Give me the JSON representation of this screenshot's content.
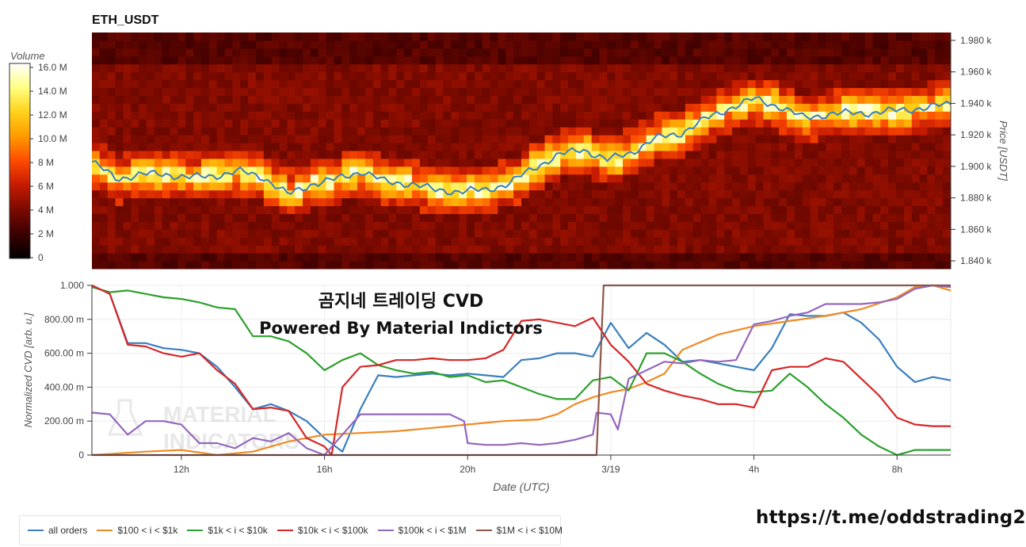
{
  "chart_data": [
    {
      "type": "heatmap",
      "title": "ETH_USDT",
      "ylabel": "Price [USDT]",
      "ylim": [
        1835,
        1985
      ],
      "yticks": [
        "1.840 k",
        "1.860 k",
        "1.880 k",
        "1.900 k",
        "1.920 k",
        "1.940 k",
        "1.960 k",
        "1.980 k"
      ],
      "ytick_values": [
        1840,
        1860,
        1880,
        1900,
        1920,
        1940,
        1960,
        1980
      ],
      "colorbar": {
        "label": "Volume",
        "ticks": [
          "0",
          "2 M",
          "4 M",
          "6 M",
          "8 M",
          "10.0 M",
          "12.0 M",
          "14.0 M",
          "16.0 M"
        ],
        "range": [
          0,
          16000000
        ],
        "colors": [
          "#000000",
          "#3a0000",
          "#7a0a00",
          "#c41a00",
          "#ff4a00",
          "#ff9a00",
          "#ffd21a",
          "#ffff80",
          "#ffffff"
        ]
      },
      "price_series": {
        "name": "price",
        "color": "#3a7fbf",
        "x_hours": [
          0,
          1,
          2,
          3,
          4,
          5,
          6,
          7,
          8,
          9,
          10,
          11,
          12,
          13,
          14,
          15,
          16,
          17,
          18,
          19,
          20,
          21,
          22,
          23
        ],
        "y": [
          1903,
          1892,
          1895,
          1895,
          1893,
          1894,
          1897,
          1893,
          1882,
          1889,
          1892,
          1897,
          1890,
          1889,
          1885,
          1884,
          1885,
          1889,
          1899,
          1907,
          1911,
          1904,
          1909,
          1918
        ]
      },
      "x_hours_extra": [
        24,
        25,
        26,
        27,
        28,
        29,
        30,
        31,
        32,
        33,
        34,
        35
      ],
      "price_extra": [
        1921,
        1930,
        1937,
        1943,
        1938,
        1931,
        1933,
        1934,
        1934,
        1936,
        1937,
        1940
      ]
    },
    {
      "type": "line",
      "title": "곰지네 트레이딩 CVD",
      "subtitle": "Powered By Material Indictors",
      "xlabel": "Date (UTC)",
      "ylabel": "Normalized CVD [arb. u.]",
      "ylim": [
        0,
        1
      ],
      "yticks": [
        "0",
        "200.00 m",
        "400.00 m",
        "600.00 m",
        "800.00 m",
        "1.000"
      ],
      "ytick_values": [
        0,
        0.2,
        0.4,
        0.6,
        0.8,
        1.0
      ],
      "x_range_hours": [
        9.5,
        33.5
      ],
      "xticks": [
        "12h",
        "16h",
        "20h",
        "3/19",
        "4h",
        "8h"
      ],
      "xtick_hours": [
        12,
        16,
        20,
        24,
        28,
        32
      ],
      "series": [
        {
          "name": "all orders",
          "color": "#3a7fbf",
          "x": [
            9.5,
            10,
            10.5,
            11,
            11.5,
            12,
            12.5,
            13,
            13.5,
            14,
            14.5,
            15,
            15.5,
            16,
            16.5,
            17,
            17.5,
            18,
            18.5,
            19,
            19.5,
            20,
            20.5,
            21,
            21.5,
            22,
            22.5,
            23,
            23.5,
            24,
            24.5,
            25,
            25.5,
            26,
            26.5,
            27,
            27.5,
            28,
            28.5,
            29,
            29.5,
            30,
            30.5,
            31,
            31.5,
            32,
            32.5,
            33,
            33.5
          ],
          "y": [
            1.0,
            0.95,
            0.66,
            0.66,
            0.63,
            0.62,
            0.6,
            0.52,
            0.4,
            0.27,
            0.3,
            0.26,
            0.2,
            0.1,
            0.02,
            0.27,
            0.47,
            0.46,
            0.47,
            0.48,
            0.47,
            0.48,
            0.47,
            0.46,
            0.56,
            0.57,
            0.6,
            0.6,
            0.58,
            0.78,
            0.63,
            0.72,
            0.65,
            0.55,
            0.56,
            0.54,
            0.52,
            0.5,
            0.63,
            0.83,
            0.82,
            0.82,
            0.84,
            0.78,
            0.68,
            0.52,
            0.43,
            0.46,
            0.44
          ]
        },
        {
          "name": "$100 < i < $1k",
          "color": "#f08a24",
          "x": [
            9.5,
            11,
            12,
            13,
            14,
            15,
            16,
            17,
            18,
            19,
            20,
            21,
            22,
            22.5,
            23,
            23.5,
            24,
            24.5,
            25,
            25.5,
            26,
            27,
            28,
            29,
            30,
            31,
            32,
            32.5,
            33,
            33.5
          ],
          "y": [
            0.0,
            0.02,
            0.03,
            0.0,
            0.02,
            0.08,
            0.12,
            0.13,
            0.14,
            0.16,
            0.18,
            0.2,
            0.21,
            0.24,
            0.3,
            0.34,
            0.37,
            0.39,
            0.43,
            0.48,
            0.62,
            0.71,
            0.76,
            0.79,
            0.82,
            0.86,
            0.93,
            0.99,
            1.0,
            0.97
          ]
        },
        {
          "name": "$1k < i < $10k",
          "color": "#2ca02c",
          "x": [
            9.5,
            10,
            10.5,
            11,
            11.5,
            12,
            12.5,
            13,
            13.5,
            14,
            14.5,
            15,
            15.5,
            16,
            16.5,
            17,
            17.5,
            18,
            18.5,
            19,
            19.5,
            20,
            20.5,
            21,
            21.5,
            22,
            22.5,
            23,
            23.5,
            24,
            24.5,
            25,
            25.5,
            26,
            26.5,
            27,
            27.5,
            28,
            28.5,
            29,
            29.5,
            30,
            30.5,
            31,
            31.5,
            32,
            32.5,
            33,
            33.5
          ],
          "y": [
            0.99,
            0.96,
            0.97,
            0.95,
            0.93,
            0.92,
            0.9,
            0.87,
            0.86,
            0.7,
            0.7,
            0.67,
            0.6,
            0.5,
            0.56,
            0.6,
            0.53,
            0.5,
            0.48,
            0.49,
            0.46,
            0.47,
            0.43,
            0.44,
            0.4,
            0.36,
            0.33,
            0.33,
            0.44,
            0.46,
            0.38,
            0.6,
            0.6,
            0.55,
            0.48,
            0.42,
            0.38,
            0.37,
            0.38,
            0.48,
            0.4,
            0.3,
            0.22,
            0.12,
            0.05,
            0.0,
            0.03,
            0.03,
            0.03
          ]
        },
        {
          "name": "$10k < i < $100k",
          "color": "#d62728",
          "x": [
            9.5,
            10,
            10.5,
            11,
            11.5,
            12,
            12.5,
            13,
            13.5,
            14,
            14.5,
            15,
            15.5,
            16,
            16.2,
            16.5,
            17,
            17.5,
            18,
            18.5,
            19,
            19.5,
            20,
            20.5,
            21,
            21.5,
            22,
            22.5,
            23,
            23.5,
            24,
            24.5,
            25,
            25.5,
            26,
            26.5,
            27,
            27.5,
            28,
            28.5,
            29,
            29.5,
            30,
            30.5,
            31,
            31.5,
            32,
            32.5,
            33,
            33.5
          ],
          "y": [
            1.0,
            0.95,
            0.65,
            0.64,
            0.6,
            0.58,
            0.6,
            0.5,
            0.42,
            0.27,
            0.28,
            0.26,
            0.1,
            0.05,
            0.0,
            0.4,
            0.52,
            0.53,
            0.56,
            0.56,
            0.57,
            0.56,
            0.56,
            0.57,
            0.62,
            0.79,
            0.8,
            0.78,
            0.76,
            0.81,
            0.65,
            0.55,
            0.42,
            0.38,
            0.35,
            0.33,
            0.3,
            0.3,
            0.28,
            0.5,
            0.52,
            0.52,
            0.57,
            0.55,
            0.45,
            0.35,
            0.22,
            0.18,
            0.17,
            0.17
          ]
        },
        {
          "name": "$100k < i < $1M",
          "color": "#9467bd",
          "x": [
            9.5,
            10,
            10.5,
            11,
            11.5,
            12,
            12.5,
            13,
            13.5,
            14,
            14.5,
            15,
            15.5,
            16,
            16.5,
            17,
            17.5,
            18,
            18.5,
            19,
            19.5,
            19.9,
            20,
            20.5,
            21,
            21.5,
            22,
            22.5,
            23,
            23.5,
            23.6,
            24,
            24.2,
            24.5,
            25,
            25.5,
            26,
            26.5,
            27,
            27.5,
            28,
            28.5,
            29,
            29.5,
            30,
            30.5,
            31,
            31.5,
            32,
            32.5,
            33,
            33.5
          ],
          "y": [
            0.25,
            0.24,
            0.12,
            0.2,
            0.2,
            0.18,
            0.07,
            0.07,
            0.04,
            0.1,
            0.08,
            0.13,
            0.04,
            0.0,
            0.12,
            0.24,
            0.24,
            0.24,
            0.24,
            0.24,
            0.24,
            0.2,
            0.07,
            0.06,
            0.06,
            0.07,
            0.06,
            0.07,
            0.09,
            0.12,
            0.25,
            0.24,
            0.15,
            0.45,
            0.5,
            0.55,
            0.54,
            0.56,
            0.55,
            0.56,
            0.77,
            0.79,
            0.82,
            0.84,
            0.89,
            0.89,
            0.89,
            0.9,
            0.92,
            0.98,
            1.0,
            0.99
          ]
        },
        {
          "name": "$1M < i < $10M",
          "color": "#8c564b",
          "x": [
            9.5,
            23.2,
            23.6,
            23.8,
            24,
            26,
            28,
            30,
            32,
            33.5
          ],
          "y": [
            0.0,
            0.0,
            0.0,
            1.0,
            1.0,
            1.0,
            1.0,
            1.0,
            1.0,
            1.0
          ]
        }
      ]
    }
  ],
  "watermark": "MATERIAL INDICATORS",
  "credit": "https://t.me/oddstrading2"
}
